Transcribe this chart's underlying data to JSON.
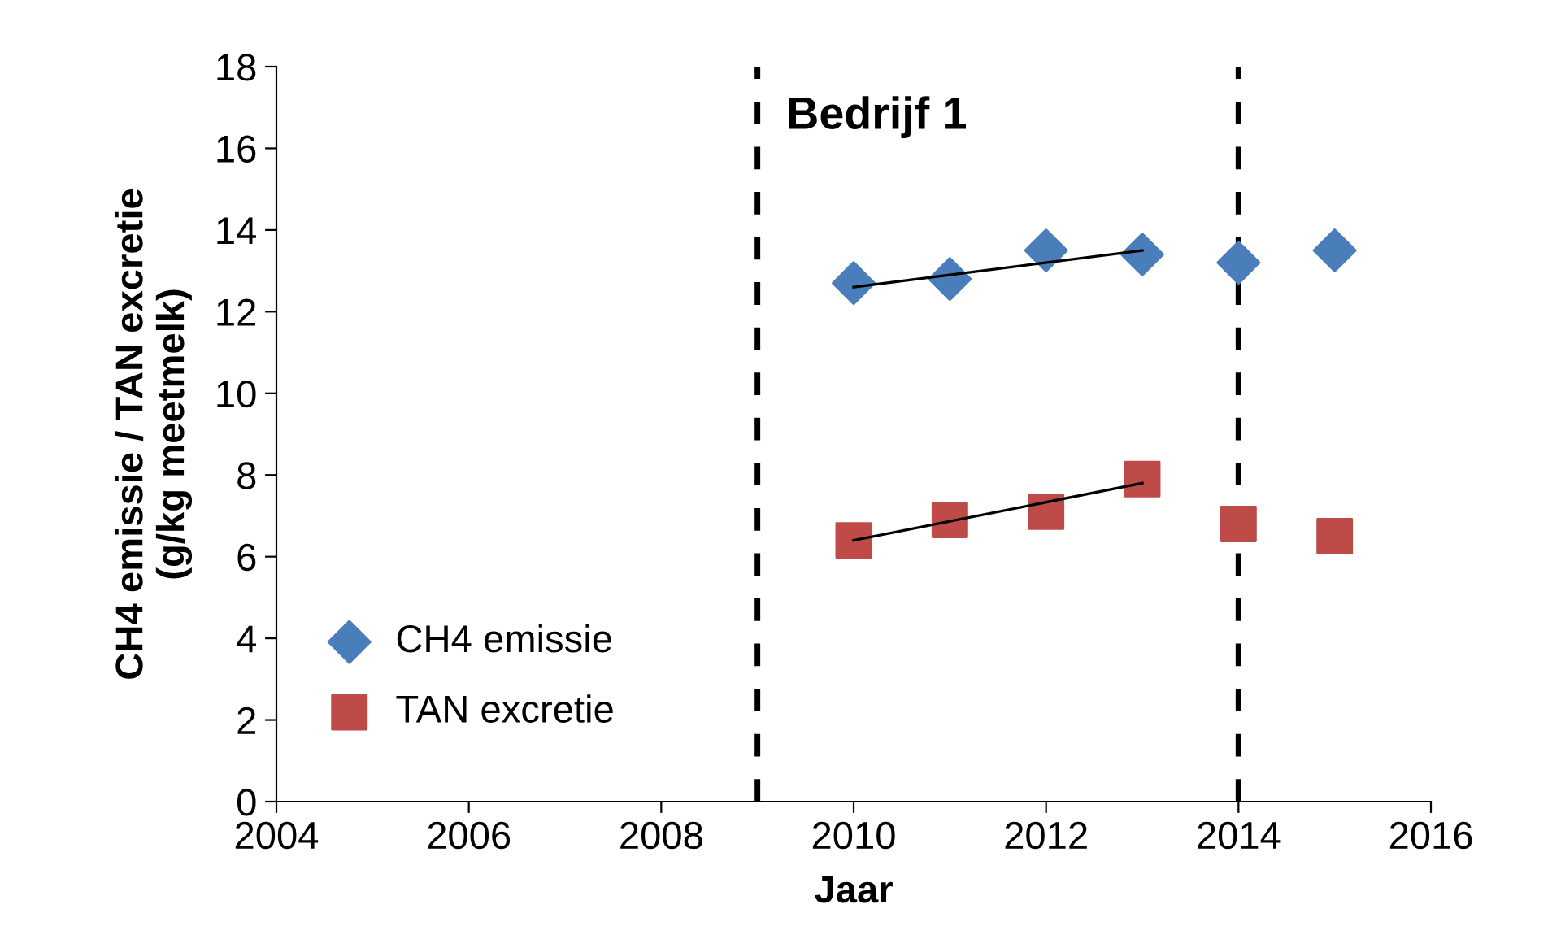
{
  "chart_data": {
    "type": "scatter",
    "title": "Bedrijf 1",
    "xlabel": "Jaar",
    "ylabel": "CH4 emissie / TAN excretie\n(g/kg meetmelk)",
    "xlim": [
      2004,
      2016
    ],
    "xticks": [
      2004,
      2006,
      2008,
      2010,
      2012,
      2014,
      2016
    ],
    "ylim": [
      0,
      18
    ],
    "yticks": [
      0,
      2,
      4,
      6,
      8,
      10,
      12,
      14,
      16,
      18
    ],
    "grid": false,
    "legend": "bottom left",
    "series": [
      {
        "name": "CH4 emissie",
        "color": "#4a7ebb",
        "marker": "diamond",
        "x": [
          2010,
          2011,
          2012,
          2013,
          2014,
          2015
        ],
        "values": [
          12.7,
          12.8,
          13.5,
          13.4,
          13.2,
          13.5
        ]
      },
      {
        "name": "TAN excretie",
        "color": "#be4b48",
        "marker": "square",
        "x": [
          2010,
          2011,
          2012,
          2013,
          2014,
          2015
        ],
        "values": [
          6.4,
          6.9,
          7.1,
          7.9,
          6.8,
          6.5
        ]
      },
      {
        "type": "line",
        "color": "#000000",
        "marker": "none",
        "x": [
          2010,
          2013
        ],
        "values": [
          12.6,
          13.5
        ]
      },
      {
        "type": "line",
        "color": "#000000",
        "marker": "none",
        "x": [
          2010,
          2013
        ],
        "values": [
          6.4,
          7.8
        ]
      }
    ],
    "ref_lines": [
      {
        "axis": "x",
        "value": 2009,
        "color": "#000000",
        "line_style": "dashed"
      },
      {
        "axis": "x",
        "value": 2014,
        "color": "#000000",
        "line_style": "dashed"
      }
    ]
  }
}
